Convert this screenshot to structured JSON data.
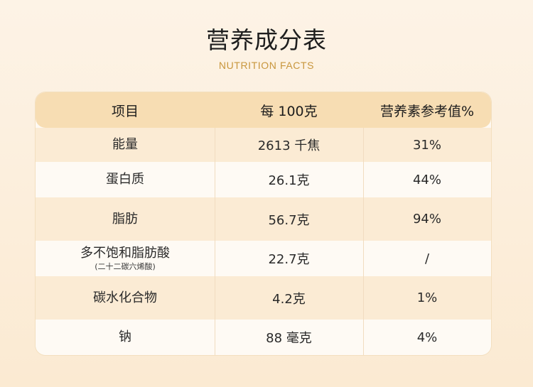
{
  "heading": {
    "title": "营养成分表",
    "subtitle": "NUTRITION FACTS"
  },
  "table": {
    "headers": [
      "项目",
      "每 100克",
      "营养素参考值%"
    ],
    "rows": [
      {
        "item": "能量",
        "note": "",
        "per100": "2613 千焦",
        "nrv": "31%"
      },
      {
        "item": "蛋白质",
        "note": "",
        "per100": "26.1克",
        "nrv": "44%"
      },
      {
        "item": "脂肪",
        "note": "",
        "per100": "56.7克",
        "nrv": "94%"
      },
      {
        "item": "多不饱和脂肪酸",
        "note": "(二十二碳六烯酸)",
        "per100": "22.7克",
        "nrv": "/"
      },
      {
        "item": "碳水化合物",
        "note": "",
        "per100": "4.2克",
        "nrv": "1%"
      },
      {
        "item": "钠",
        "note": "",
        "per100": "88 毫克",
        "nrv": "4%"
      }
    ]
  },
  "colors": {
    "header_bg": "#f7ddb3",
    "row_tint": "#fbebd4",
    "row_plain": "#fefaf4",
    "subtitle": "#c8963c"
  }
}
